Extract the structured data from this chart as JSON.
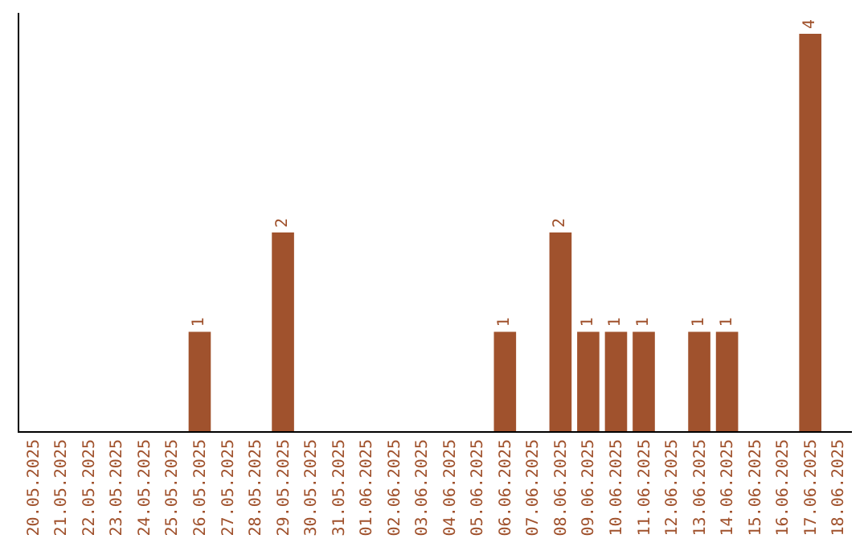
{
  "chart_data": {
    "type": "bar",
    "categories": [
      "20.05.2025",
      "21.05.2025",
      "22.05.2025",
      "23.05.2025",
      "24.05.2025",
      "25.05.2025",
      "26.05.2025",
      "27.05.2025",
      "28.05.2025",
      "29.05.2025",
      "30.05.2025",
      "31.05.2025",
      "01.06.2025",
      "02.06.2025",
      "03.06.2025",
      "04.06.2025",
      "05.06.2025",
      "06.06.2025",
      "07.06.2025",
      "08.06.2025",
      "09.06.2025",
      "10.06.2025",
      "11.06.2025",
      "12.06.2025",
      "13.06.2025",
      "14.06.2025",
      "15.06.2025",
      "16.06.2025",
      "17.06.2025",
      "18.06.2025"
    ],
    "values": [
      0,
      0,
      0,
      0,
      0,
      0,
      1,
      0,
      0,
      2,
      0,
      0,
      0,
      0,
      0,
      0,
      0,
      1,
      0,
      2,
      1,
      1,
      1,
      0,
      1,
      1,
      0,
      0,
      4,
      0
    ],
    "value_labels": [
      null,
      null,
      null,
      null,
      null,
      null,
      "1",
      null,
      null,
      "2",
      null,
      null,
      null,
      null,
      null,
      null,
      null,
      "1",
      null,
      "2",
      "1",
      "1",
      "1",
      null,
      "1",
      "1",
      null,
      null,
      "4",
      null
    ],
    "color": "#a0522d",
    "grid": false,
    "legend": false,
    "tick_labels": "x"
  }
}
